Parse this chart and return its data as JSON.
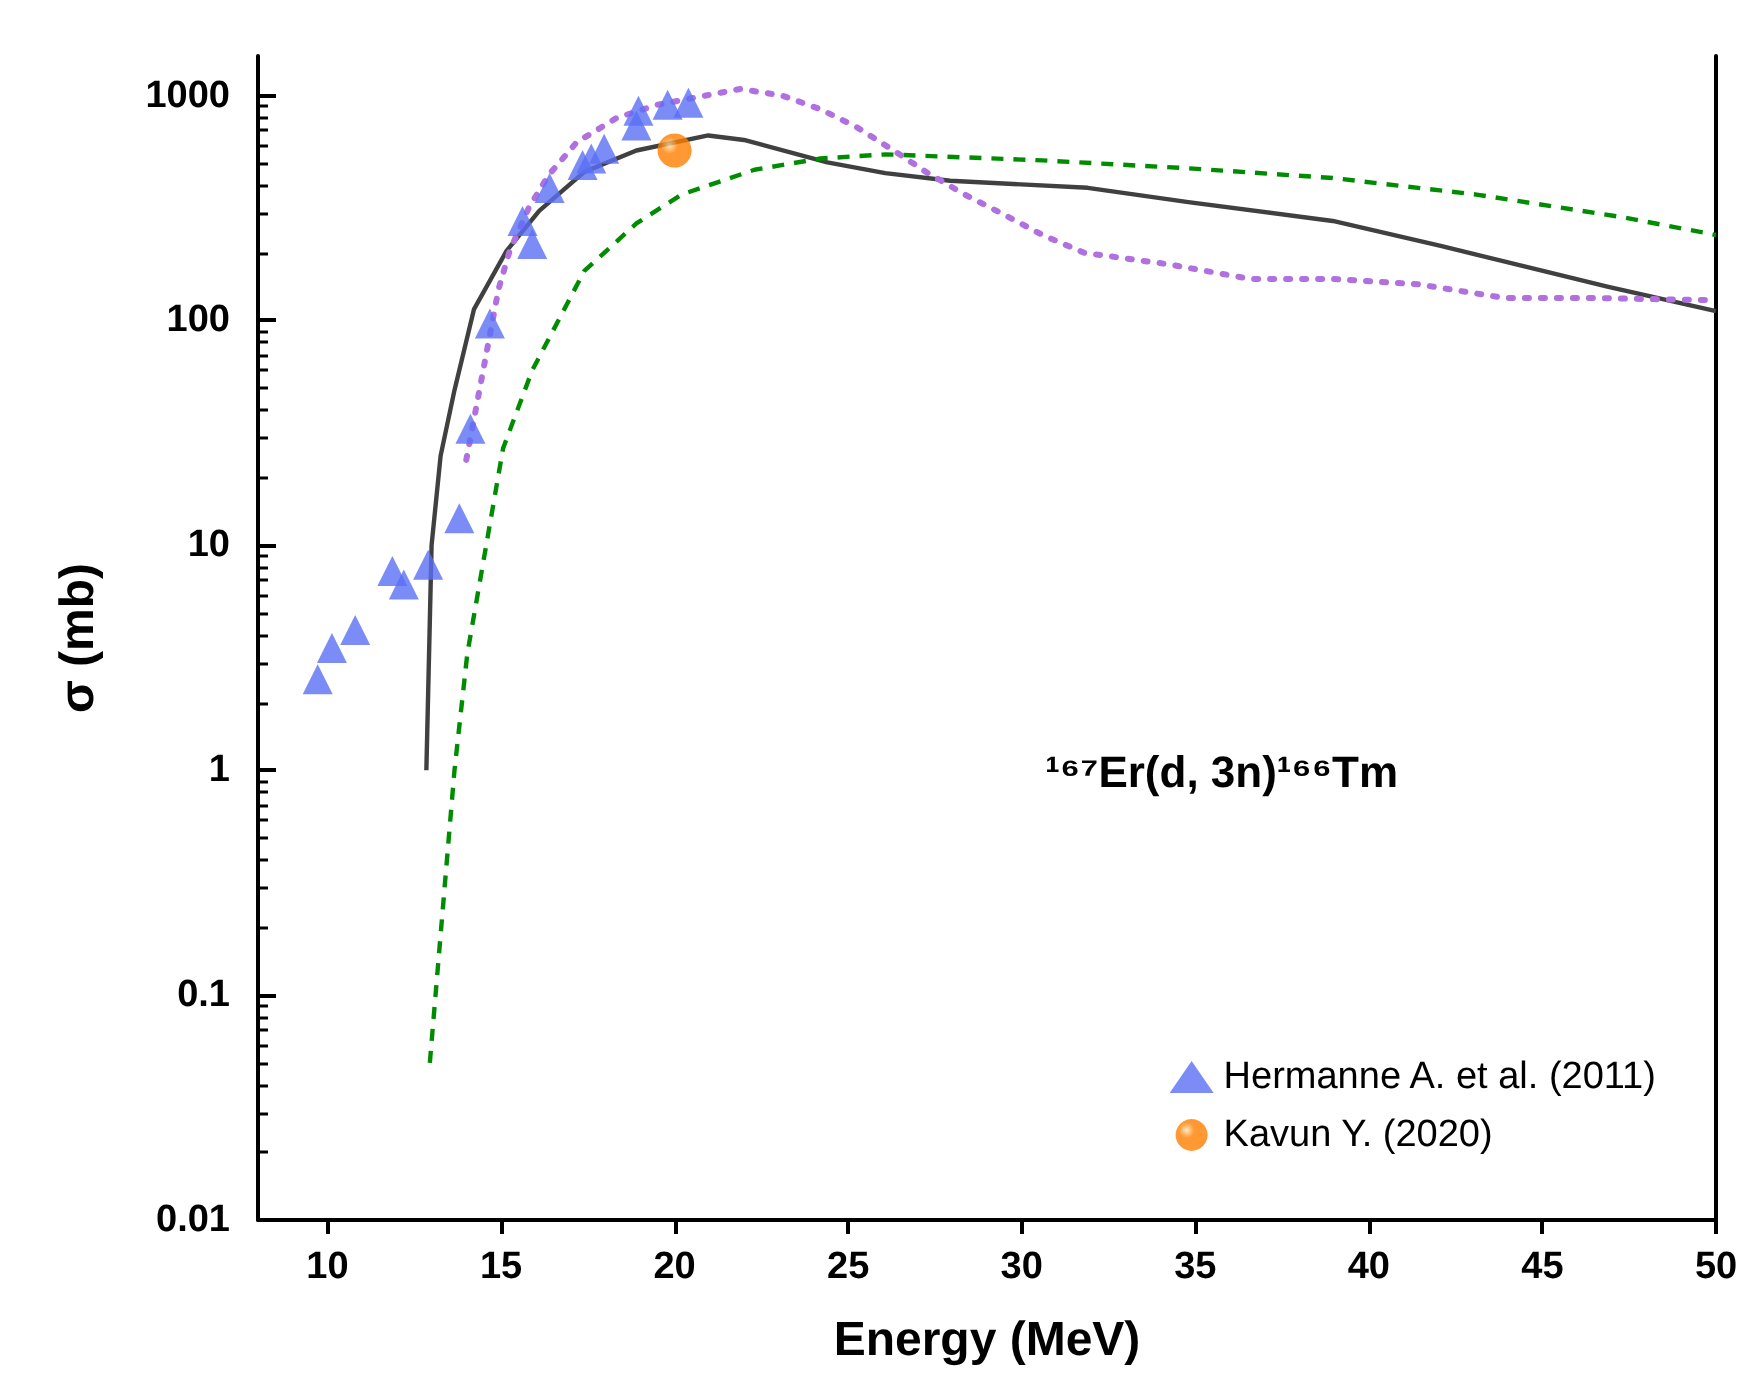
{
  "chart_data": {
    "type": "line",
    "xlabel": "Energy (MeV)",
    "ylabel": "σ (mb)",
    "legend_title": "¹⁶⁷Er(d, 3n)¹⁶⁶Tm",
    "log": "y",
    "xlim": [
      8,
      50
    ],
    "xticks": [
      10,
      15,
      20,
      25,
      30,
      35,
      40,
      45,
      50
    ],
    "ylim": [
      0.01,
      1500
    ],
    "yticks": [
      0.01,
      0.1,
      1,
      10,
      100,
      1000
    ],
    "grid": false,
    "legend": "bottom right",
    "series": [
      {
        "color": "#404040",
        "line_style": "solid",
        "marker": "none",
        "x": [
          12.85,
          13.0,
          13.26,
          13.66,
          14.22,
          15.16,
          16.1,
          17.4,
          18.9,
          20.97,
          22.0,
          24.4,
          26.07,
          27.94,
          31.9,
          34.8,
          38.96,
          42.1,
          46.9,
          50
        ],
        "values": [
          1,
          10,
          25,
          49,
          112,
          204,
          307,
          458,
          570,
          665,
          635,
          505,
          452,
          418,
          389,
          336,
          277,
          214,
          141,
          110
        ]
      },
      {
        "color": "#008c00",
        "line_style": "dashed",
        "marker": "none",
        "x": [
          12.95,
          13.66,
          14.03,
          14.5,
          15.06,
          15.9,
          17.4,
          18.9,
          20.2,
          22.3,
          24.2,
          26.1,
          30.6,
          34.8,
          38.96,
          43.1,
          47.3,
          50
        ],
        "values": [
          0.05,
          1,
          3.3,
          8.6,
          27,
          60,
          166,
          270,
          363,
          468,
          525,
          548,
          515,
          475,
          430,
          363,
          288,
          240
        ]
      },
      {
        "color": "#b070e0",
        "line_style": "dotted",
        "marker": "none",
        "x": [
          14.0,
          14.46,
          14.93,
          15.25,
          15.8,
          16.37,
          17.18,
          18.34,
          19.5,
          21.9,
          23.1,
          24.2,
          25.24,
          26.27,
          27.3,
          28.36,
          29.5,
          30.6,
          31.8,
          34.2,
          36.6,
          38.97,
          41.4,
          43.9,
          46.3,
          50
        ],
        "values": [
          24,
          57,
          138,
          204,
          317,
          443,
          620,
          797,
          910,
          1070,
          1000,
          870,
          725,
          575,
          452,
          363,
          295,
          240,
          200,
          178,
          153,
          153,
          145,
          126,
          126,
          123
        ]
      },
      {
        "type": "scatter",
        "name": "Hermanne A. et al. (2011)",
        "color": "#5a6ff5",
        "marker": "triangle",
        "x": [
          9.72,
          10.13,
          10.8,
          11.87,
          12.2,
          12.9,
          13.8,
          14.12,
          14.68,
          15.62,
          15.9,
          16.4,
          17.35,
          17.6,
          17.97,
          18.9,
          18.96,
          19.8,
          20.4
        ],
        "values": [
          2.54,
          3.5,
          4.2,
          7.7,
          6.7,
          8.2,
          13.2,
          33,
          97,
          277,
          219,
          388,
          491,
          525,
          580,
          736,
          856,
          910,
          930
        ]
      },
      {
        "type": "scatter",
        "name": "Kavun Y. (2020)",
        "color": "#ff7f00",
        "marker": "circle",
        "x": [
          20.0
        ],
        "values": [
          570
        ]
      }
    ]
  }
}
